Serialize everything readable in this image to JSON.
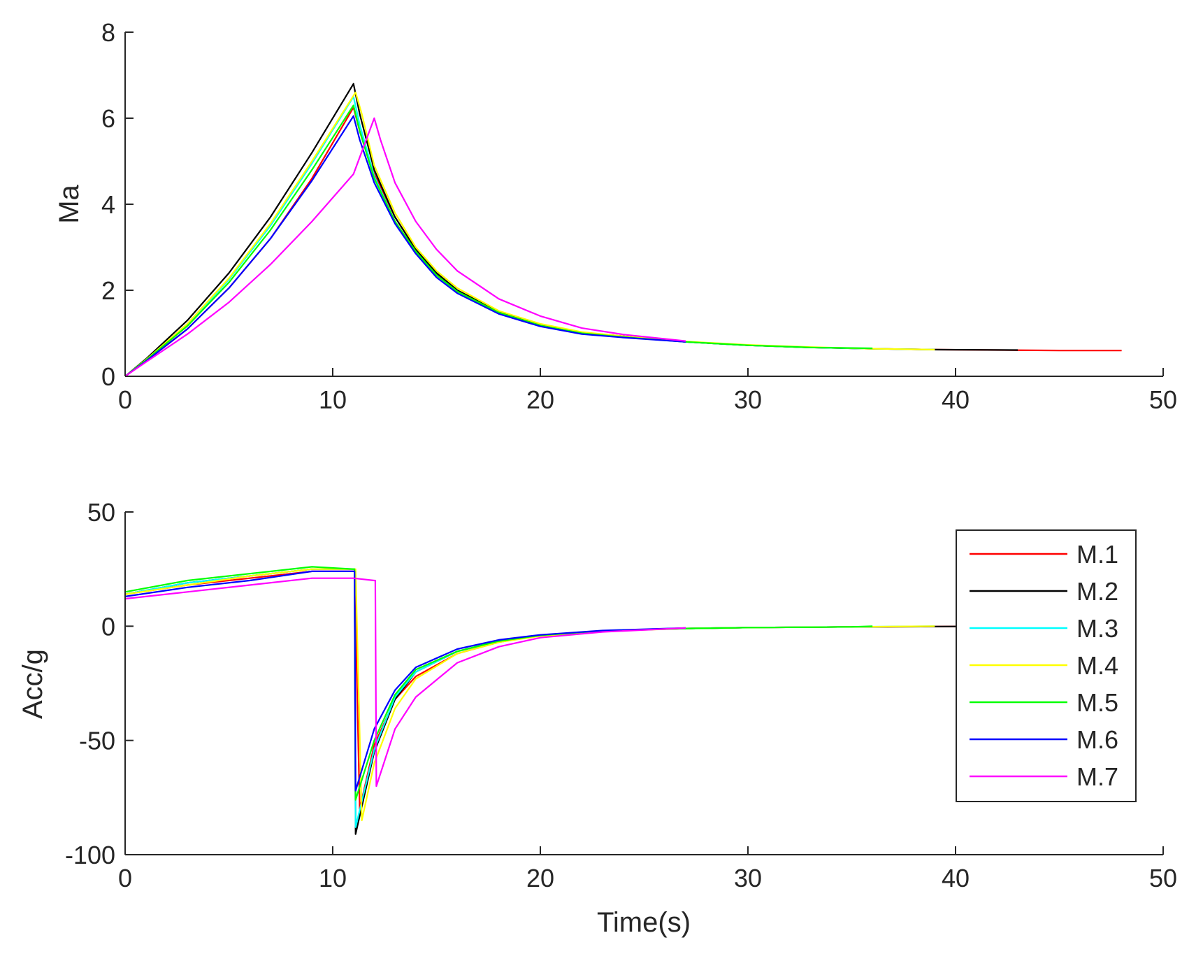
{
  "figure": {
    "colors": {
      "M.1": "#ff0000",
      "M.2": "#000000",
      "M.3": "#00ffff",
      "M.4": "#ffff00",
      "M.5": "#00ff00",
      "M.6": "#0000ff",
      "M.7": "#ff00ff"
    }
  },
  "chart_data": [
    {
      "type": "line",
      "ylabel": "Ma",
      "xlabel": "",
      "xlim": [
        0,
        50
      ],
      "ylim": [
        0,
        8
      ],
      "xticks": [
        "0",
        "10",
        "20",
        "30",
        "40",
        "50"
      ],
      "yticks": [
        "0",
        "2",
        "4",
        "6",
        "8"
      ],
      "grid": false,
      "series": [
        {
          "name": "M.1",
          "color": "#ff0000",
          "x": [
            0,
            1,
            3,
            5,
            7,
            9,
            11,
            11.3,
            12,
            13,
            14,
            15,
            16,
            18,
            20,
            22,
            24,
            27,
            30,
            33,
            36,
            39,
            42,
            45,
            48
          ],
          "y": [
            0,
            0.35,
            1.1,
            2.05,
            3.2,
            4.6,
            6.25,
            5.7,
            4.7,
            3.7,
            2.95,
            2.4,
            2.0,
            1.5,
            1.2,
            1.02,
            0.93,
            0.8,
            0.72,
            0.67,
            0.64,
            0.62,
            0.61,
            0.6,
            0.6
          ]
        },
        {
          "name": "M.2",
          "color": "#000000",
          "x": [
            0,
            1,
            3,
            5,
            7,
            9,
            11,
            11.3,
            12,
            13,
            14,
            15,
            16,
            18,
            20,
            22,
            24,
            27,
            30,
            33,
            36,
            39,
            43
          ],
          "y": [
            0,
            0.4,
            1.3,
            2.4,
            3.7,
            5.2,
            6.8,
            6.1,
            4.8,
            3.7,
            2.95,
            2.4,
            2.0,
            1.5,
            1.2,
            1.02,
            0.93,
            0.8,
            0.72,
            0.67,
            0.64,
            0.62,
            0.61
          ]
        },
        {
          "name": "M.3",
          "color": "#00ffff",
          "x": [
            0,
            1,
            3,
            5,
            7,
            9,
            11,
            11.3,
            12,
            13,
            14,
            15,
            16,
            18,
            20,
            22,
            24,
            27,
            30,
            33,
            36,
            39
          ],
          "y": [
            0,
            0.38,
            1.2,
            2.25,
            3.5,
            4.95,
            6.5,
            5.85,
            4.65,
            3.6,
            2.9,
            2.35,
            1.97,
            1.48,
            1.18,
            1.0,
            0.91,
            0.8,
            0.72,
            0.67,
            0.64,
            0.62
          ]
        },
        {
          "name": "M.4",
          "color": "#ffff00",
          "x": [
            0,
            1,
            3,
            5,
            7,
            9,
            11.1,
            11.4,
            12,
            13,
            14,
            15,
            16,
            18,
            20,
            22,
            24,
            27,
            30,
            33,
            36,
            39
          ],
          "y": [
            0,
            0.38,
            1.22,
            2.28,
            3.55,
            5.0,
            6.6,
            6.1,
            4.9,
            3.8,
            3.0,
            2.45,
            2.05,
            1.52,
            1.22,
            1.03,
            0.93,
            0.81,
            0.73,
            0.68,
            0.64,
            0.62
          ]
        },
        {
          "name": "M.5",
          "color": "#00ff00",
          "x": [
            0,
            1,
            3,
            5,
            7,
            9,
            11,
            11.3,
            12,
            13,
            14,
            15,
            16,
            18,
            20,
            22,
            24,
            27,
            30,
            33,
            36
          ],
          "y": [
            0,
            0.37,
            1.17,
            2.18,
            3.4,
            4.8,
            6.3,
            5.7,
            4.6,
            3.6,
            2.9,
            2.35,
            1.97,
            1.48,
            1.18,
            1.0,
            0.91,
            0.8,
            0.72,
            0.67,
            0.65
          ]
        },
        {
          "name": "M.6",
          "color": "#0000ff",
          "x": [
            0,
            1,
            3,
            5,
            7,
            9,
            11,
            11.3,
            12,
            13,
            14,
            15,
            16,
            18,
            20,
            22,
            24,
            27
          ],
          "y": [
            0,
            0.35,
            1.1,
            2.05,
            3.2,
            4.55,
            6.05,
            5.5,
            4.5,
            3.55,
            2.85,
            2.3,
            1.93,
            1.45,
            1.16,
            0.98,
            0.9,
            0.8
          ]
        },
        {
          "name": "M.7",
          "color": "#ff00ff",
          "x": [
            0,
            1,
            3,
            5,
            7,
            9,
            11,
            12,
            12.3,
            13,
            14,
            15,
            16,
            18,
            20,
            22,
            24,
            27
          ],
          "y": [
            0,
            0.33,
            0.98,
            1.72,
            2.6,
            3.6,
            4.7,
            6.0,
            5.5,
            4.5,
            3.6,
            2.95,
            2.45,
            1.8,
            1.4,
            1.12,
            0.97,
            0.82
          ]
        }
      ]
    },
    {
      "type": "line",
      "ylabel": "Acc/g",
      "xlabel": "Time(s)",
      "xlim": [
        0,
        50
      ],
      "ylim": [
        -100,
        50
      ],
      "xticks": [
        "0",
        "10",
        "20",
        "30",
        "40",
        "50"
      ],
      "yticks": [
        "-100",
        "-50",
        "0",
        "50"
      ],
      "grid": false,
      "legend": {
        "placement": "east",
        "entries": [
          "M.1",
          "M.2",
          "M.3",
          "M.4",
          "M.5",
          "M.6",
          "M.7"
        ]
      },
      "series": [
        {
          "name": "M.1",
          "color": "#ff0000",
          "x": [
            0,
            3,
            6,
            9,
            11,
            11.05,
            11.3,
            12,
            13,
            14,
            16,
            18,
            20,
            23,
            27,
            30,
            35,
            40,
            45,
            48
          ],
          "y": [
            14,
            18,
            21,
            24,
            24,
            24,
            -80,
            -52,
            -32,
            -22,
            -12,
            -7,
            -4,
            -2,
            -1,
            -0.6,
            -0.3,
            -0.1,
            0,
            0
          ]
        },
        {
          "name": "M.2",
          "color": "#000000",
          "x": [
            0,
            3,
            6,
            9,
            11,
            11.05,
            11.1,
            12,
            13,
            14,
            16,
            18,
            20,
            23,
            27,
            30,
            35,
            40,
            43
          ],
          "y": [
            14,
            19,
            22,
            25,
            25,
            25,
            -91,
            -55,
            -32,
            -20,
            -11,
            -6.5,
            -4,
            -2,
            -1,
            -0.6,
            -0.3,
            -0.1,
            0
          ]
        },
        {
          "name": "M.3",
          "color": "#00ffff",
          "x": [
            0,
            3,
            6,
            9,
            11,
            11.05,
            11.1,
            12,
            13,
            14,
            16,
            18,
            20,
            23,
            27,
            30,
            35,
            39
          ],
          "y": [
            14,
            19,
            22,
            25,
            25,
            25,
            -88,
            -54,
            -31,
            -20,
            -11,
            -6.5,
            -4,
            -2,
            -1,
            -0.6,
            -0.3,
            0
          ]
        },
        {
          "name": "M.4",
          "color": "#ffff00",
          "x": [
            0,
            3,
            6,
            9,
            11,
            11.1,
            11.4,
            12,
            13,
            14,
            16,
            18,
            20,
            23,
            27,
            30,
            35,
            39
          ],
          "y": [
            14,
            18,
            22,
            25,
            25,
            25,
            -85,
            -60,
            -36,
            -23,
            -12,
            -7,
            -4.3,
            -2.2,
            -1,
            -0.6,
            -0.3,
            0
          ]
        },
        {
          "name": "M.5",
          "color": "#00ff00",
          "x": [
            0,
            3,
            6,
            9,
            11,
            11.05,
            11.1,
            12,
            13,
            14,
            16,
            18,
            20,
            23,
            27,
            30,
            35,
            36
          ],
          "y": [
            15,
            20,
            23,
            26,
            25,
            25,
            -76,
            -50,
            -30,
            -19,
            -11,
            -6.5,
            -4,
            -2,
            -1,
            -0.6,
            -0.3,
            0
          ]
        },
        {
          "name": "M.6",
          "color": "#0000ff",
          "x": [
            0,
            3,
            6,
            9,
            11,
            11.05,
            11.1,
            12,
            13,
            14,
            16,
            18,
            20,
            23,
            27
          ],
          "y": [
            13,
            17,
            20,
            24,
            24,
            24,
            -72,
            -45,
            -28,
            -18,
            -10,
            -6,
            -3.8,
            -1.9,
            -0.8
          ]
        },
        {
          "name": "M.7",
          "color": "#ff00ff",
          "x": [
            0,
            3,
            6,
            9,
            11,
            12,
            12.05,
            12.1,
            13,
            14,
            16,
            18,
            20,
            23,
            27
          ],
          "y": [
            12,
            15,
            18,
            21,
            21,
            20,
            20,
            -70,
            -45,
            -31,
            -16,
            -9,
            -5,
            -2.5,
            -0.8
          ]
        }
      ]
    }
  ]
}
